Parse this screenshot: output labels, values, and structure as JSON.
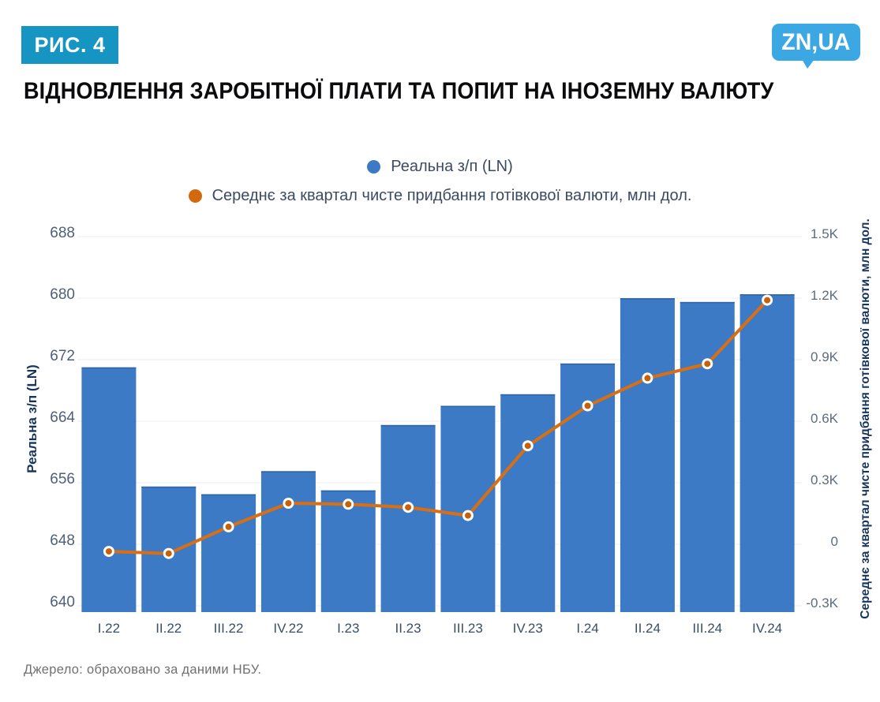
{
  "header": {
    "figure_label": "РИС. 4",
    "logo_text": "ZN,UA",
    "title": "ВІДНОВЛЕННЯ ЗАРОБІТНОЇ ПЛАТИ ТА ПОПИТ НА ІНОЗЕМНУ ВАЛЮТУ"
  },
  "colors": {
    "badge_teal": "#1795C2",
    "logo_blue": "#3BA7E3",
    "bar_blue": "#3D7AC6",
    "bar_edge": "#2F63A4",
    "line_orange": "#D96F12",
    "marker_orange": "#C76109",
    "grid_gray": "#ECEDF1",
    "navy_text": "#16345C"
  },
  "legend": {
    "items": [
      {
        "label": "Реальна з/п (LN)",
        "color": "#3D7AC6"
      },
      {
        "label": "Середнє за квартал чисте придбання готівкової валюти, млн дол.",
        "color": "#D2690E"
      }
    ]
  },
  "chart_data": {
    "type": "combo-bar-line-dual-axis",
    "grid": true,
    "legend_position": "top-center",
    "categories": [
      "I.22",
      "II.22",
      "III.22",
      "IV.22",
      "I.23",
      "II.23",
      "III.23",
      "IV.23",
      "I.24",
      "II.24",
      "III.24",
      "IV.24"
    ],
    "series": [
      {
        "name": "Реальна з/п (LN)",
        "type": "bar",
        "axis": "left",
        "color": "#3D7AC6",
        "values": [
          671,
          655.5,
          654.5,
          657.5,
          655,
          663.5,
          666,
          667.5,
          671.5,
          680,
          679.5,
          680.5
        ]
      },
      {
        "name": "Середнє за квартал чисте придбання готівкової валюти, млн дол.",
        "type": "line",
        "axis": "right",
        "color": "#D96F12",
        "marker_color": "#C76109",
        "values": [
          -35,
          -45,
          85,
          200,
          195,
          180,
          140,
          480,
          675,
          810,
          880,
          1190
        ]
      }
    ],
    "left_axis": {
      "label": "Реальна з/п (LN)",
      "tick_labels": [
        "688",
        "680",
        "672",
        "664",
        "656",
        "648",
        "640"
      ],
      "tick_values": [
        688,
        680,
        672,
        664,
        656,
        648,
        640
      ],
      "range": [
        640,
        688
      ]
    },
    "right_axis": {
      "label": "Середнє за квартал чисте придбання готівкової валюти, млн дол.",
      "tick_labels": [
        "1.5K",
        "1.2K",
        "0.9K",
        "0.6K",
        "0.3K",
        "0",
        "-0.3K"
      ],
      "tick_values": [
        1500,
        1200,
        900,
        600,
        300,
        0,
        -300
      ],
      "range": [
        -300,
        1500
      ]
    }
  },
  "source": "Джерело: обраховано за даними НБУ."
}
